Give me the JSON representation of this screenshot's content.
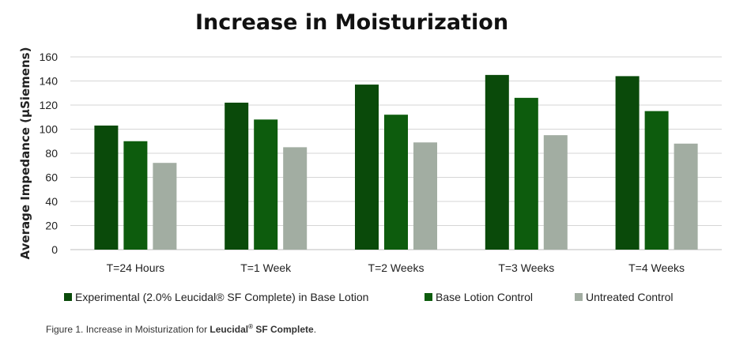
{
  "chart_data": {
    "type": "bar",
    "title": "Increase in Moisturization",
    "ylabel": "Average Impedance (µSiemens)",
    "xlabel": "",
    "ylim": [
      0,
      160
    ],
    "yticks": [
      0,
      20,
      40,
      60,
      80,
      100,
      120,
      140,
      160
    ],
    "grid": true,
    "legend_position": "bottom",
    "categories": [
      "T=24 Hours",
      "T=1 Week",
      "T=2 Weeks",
      "T=3 Weeks",
      "T=4 Weeks"
    ],
    "series": [
      {
        "name": "Experimental (2.0% Leucidal® SF Complete) in Base Lotion",
        "color": "#0a4a0a",
        "values": [
          103,
          122,
          137,
          145,
          144
        ]
      },
      {
        "name": "Base Lotion Control",
        "color": "#0d5c0d",
        "values": [
          90,
          108,
          112,
          126,
          115
        ]
      },
      {
        "name": "Untreated Control",
        "color": "#a2ada2",
        "values": [
          72,
          85,
          89,
          95,
          88
        ]
      }
    ]
  },
  "caption": {
    "prefix": "Figure 1.  Increase in Moisturization  for ",
    "product": "Leucidal",
    "mark": "®",
    "suffix": " SF Complete",
    "end": "."
  }
}
